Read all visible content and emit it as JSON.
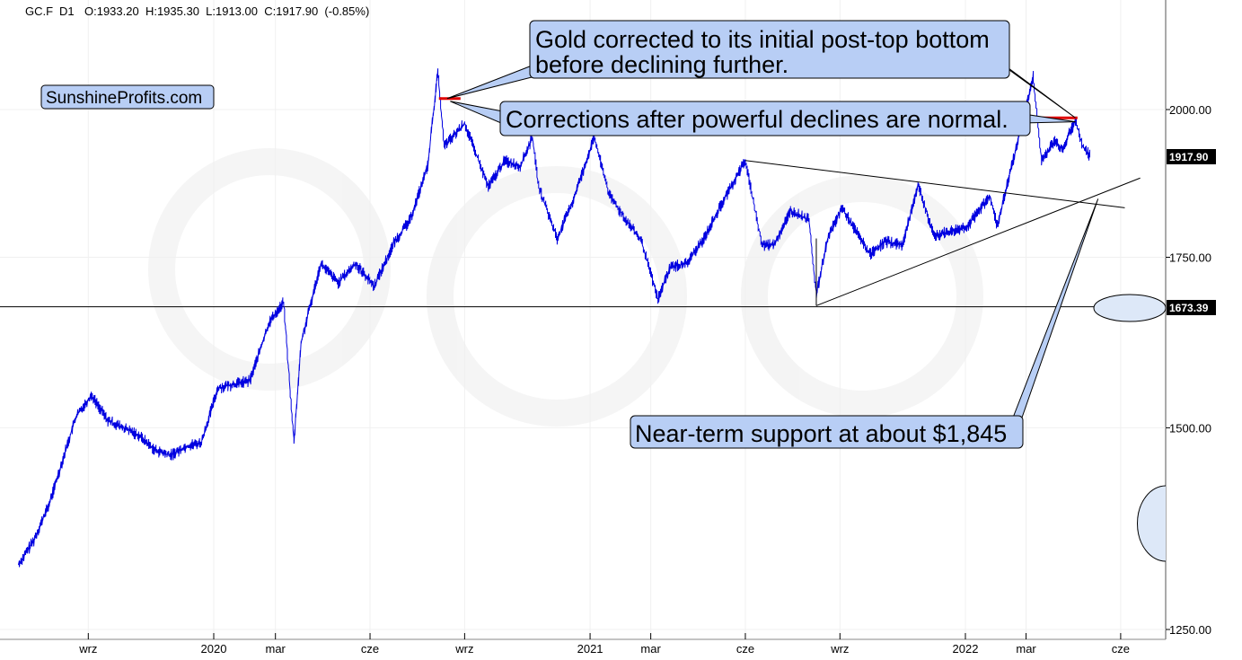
{
  "header": {
    "symbol": "GC.F",
    "timeframe": "D1",
    "ohlc": "O:1933.20  H:1935.30  L:1913.00  C:1917.90  (-0.85%)"
  },
  "watermark": "SunshineProfits.com",
  "callouts": [
    {
      "lines": [
        "Gold corrected to its initial post-top bottom",
        "before declining further."
      ]
    },
    {
      "lines": [
        "Corrections after powerful declines are normal."
      ]
    },
    {
      "lines": [
        "Near-term support at about $1,845"
      ]
    }
  ],
  "price_labels": {
    "current": "1917.90",
    "support": "1673.39"
  },
  "colors": {
    "series": "#0000e0",
    "callout_fill": "#b8cef5",
    "ellipse_fill": "#dde8f8",
    "marker": "#e00000",
    "label_bg": "#000000"
  },
  "chart_data": {
    "type": "line",
    "title": "",
    "xlabel": "",
    "ylabel": "",
    "ylim": [
      1250,
      2100
    ],
    "y_scale": "log",
    "y_ticks": [
      "1250.00",
      "1500.00",
      "1750.00",
      "2000.00"
    ],
    "x_ticks": [
      "wrz",
      "2020",
      "mar",
      "cze",
      "wrz",
      "2021",
      "mar",
      "cze",
      "wrz",
      "2022",
      "mar",
      "cze"
    ],
    "x_tick_dates": [
      "2019-09-01",
      "2020-01-01",
      "2020-03-01",
      "2020-06-01",
      "2020-09-01",
      "2021-01-01",
      "2021-03-01",
      "2021-06-01",
      "2021-09-01",
      "2022-01-01",
      "2022-03-01",
      "2022-06-01"
    ],
    "x_range": [
      "2019-06-25",
      "2022-06-20"
    ],
    "series": [
      {
        "x": [
          "2019-06-25",
          "2019-07-10",
          "2019-07-25",
          "2019-08-10",
          "2019-08-20",
          "2019-09-04",
          "2019-09-20",
          "2019-10-05",
          "2019-10-20",
          "2019-11-05",
          "2019-11-20",
          "2019-12-05",
          "2019-12-20",
          "2020-01-05",
          "2020-01-20",
          "2020-02-05",
          "2020-02-24",
          "2020-03-09",
          "2020-03-19",
          "2020-03-26",
          "2020-04-14",
          "2020-05-01",
          "2020-05-18",
          "2020-06-05",
          "2020-06-25",
          "2020-07-10",
          "2020-07-27",
          "2020-08-06",
          "2020-08-12",
          "2020-08-20",
          "2020-09-01",
          "2020-09-24",
          "2020-10-10",
          "2020-10-25",
          "2020-11-06",
          "2020-11-12",
          "2020-11-30",
          "2020-12-15",
          "2021-01-05",
          "2021-01-20",
          "2021-02-05",
          "2021-02-20",
          "2021-03-08",
          "2021-03-20",
          "2021-04-05",
          "2021-04-20",
          "2021-05-10",
          "2021-06-01",
          "2021-06-17",
          "2021-06-29",
          "2021-07-15",
          "2021-08-02",
          "2021-08-09",
          "2021-08-20",
          "2021-09-03",
          "2021-09-30",
          "2021-10-15",
          "2021-11-01",
          "2021-11-16",
          "2021-12-01",
          "2021-12-15",
          "2022-01-03",
          "2022-01-25",
          "2022-02-01",
          "2022-02-15",
          "2022-03-08",
          "2022-03-16",
          "2022-03-29",
          "2022-04-05",
          "2022-04-18",
          "2022-04-25",
          "2022-05-02"
        ],
        "values": [
          1325,
          1355,
          1400,
          1470,
          1515,
          1545,
          1510,
          1500,
          1490,
          1470,
          1463,
          1475,
          1480,
          1555,
          1560,
          1565,
          1650,
          1680,
          1480,
          1620,
          1740,
          1710,
          1740,
          1705,
          1775,
          1810,
          1900,
          2070,
          1935,
          1950,
          1975,
          1865,
          1910,
          1900,
          1950,
          1865,
          1780,
          1840,
          1950,
          1850,
          1810,
          1775,
          1685,
          1735,
          1740,
          1775,
          1840,
          1910,
          1770,
          1770,
          1825,
          1810,
          1690,
          1780,
          1830,
          1755,
          1775,
          1770,
          1870,
          1785,
          1790,
          1800,
          1850,
          1800,
          1900,
          2060,
          1910,
          1945,
          1930,
          1980,
          1935,
          1918
        ]
      }
    ],
    "annotations": {
      "support_level": 1673.39,
      "last_price": 1917.9,
      "top_date": "2020-08-06",
      "top_price": 2070,
      "post_top_bottom_marker": 2020,
      "post_top_bottom_marker_2022": 1985,
      "trendline_down": {
        "x": [
          "2021-06-01",
          "2022-06-05"
        ],
        "y": [
          1910,
          1830
        ]
      },
      "trendline_up": {
        "x": [
          "2021-08-09",
          "2022-06-20"
        ],
        "y": [
          1675,
          1880
        ]
      },
      "support_line_vertical_date": "2021-08-09"
    }
  }
}
